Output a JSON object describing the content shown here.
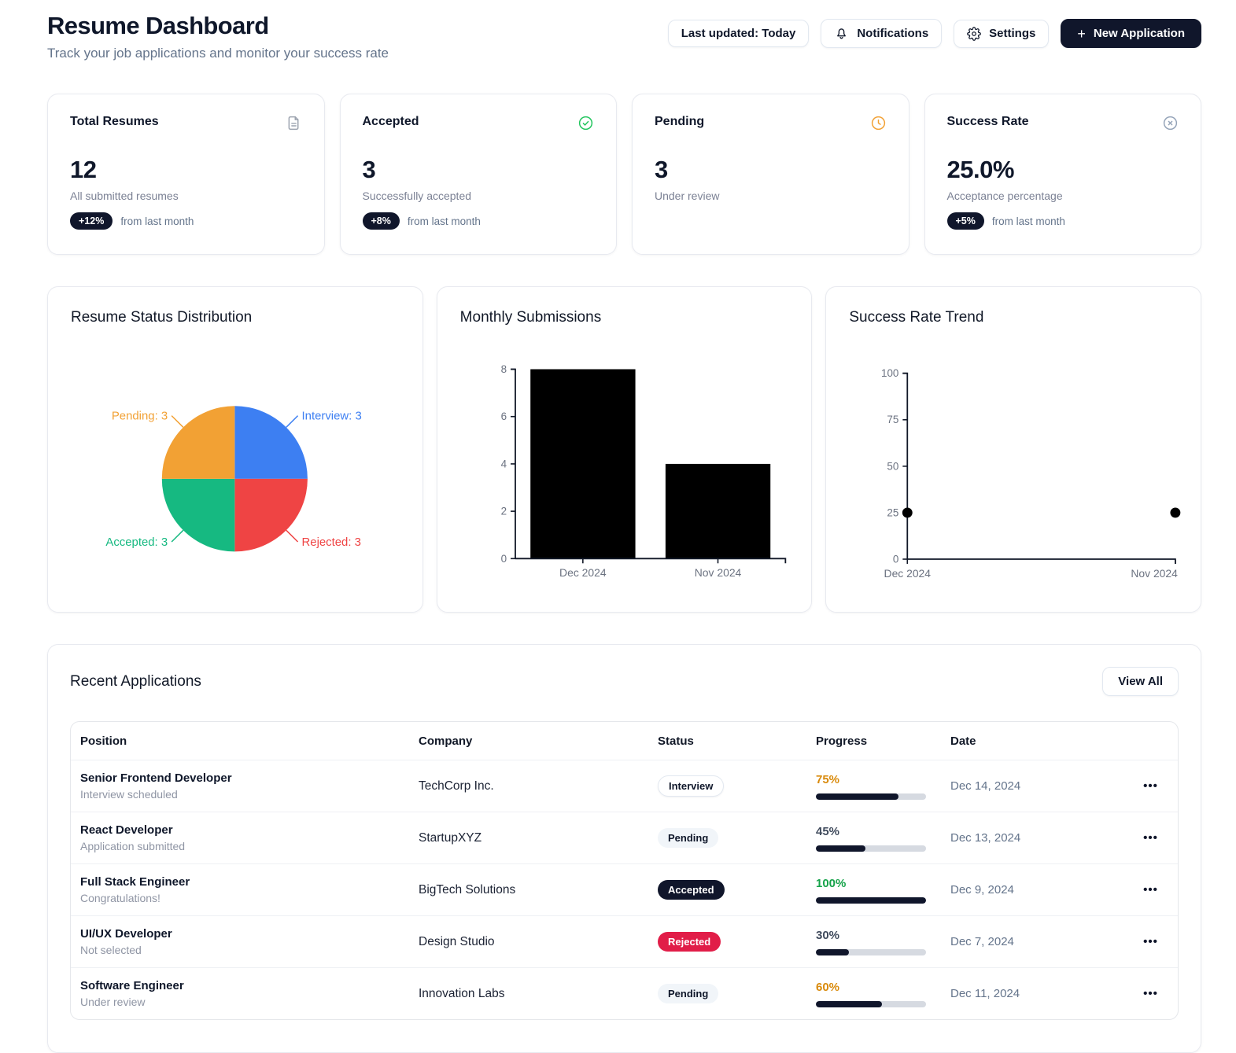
{
  "header": {
    "title": "Resume Dashboard",
    "subtitle": "Track your job applications and monitor your success rate",
    "last_updated_label": "Last updated: Today",
    "notifications_label": "Notifications",
    "settings_label": "Settings",
    "new_application_label": "New Application",
    "new_application_plus": "+"
  },
  "stat_cards": [
    {
      "title": "Total Resumes",
      "icon": "document-icon",
      "value": "12",
      "description": "All submitted resumes",
      "badge": "+12%",
      "badge_suffix": "from last month"
    },
    {
      "title": "Accepted",
      "icon": "check-circle-icon",
      "value": "3",
      "description": "Successfully accepted",
      "badge": "+8%",
      "badge_suffix": "from last month"
    },
    {
      "title": "Pending",
      "icon": "clock-icon",
      "value": "3",
      "description": "Under review",
      "badge": null,
      "badge_suffix": null
    },
    {
      "title": "Success Rate",
      "icon": "x-circle-icon",
      "value": "25.0%",
      "description": "Acceptance percentage",
      "badge": "+5%",
      "badge_suffix": "from last month"
    }
  ],
  "chart_data": [
    {
      "type": "pie",
      "title": "Resume Status Distribution",
      "slices": [
        {
          "label": "Interview",
          "value": 3,
          "color": "#3d7ff2"
        },
        {
          "label": "Rejected",
          "value": 3,
          "color": "#ef4444"
        },
        {
          "label": "Accepted",
          "value": 3,
          "color": "#16b981"
        },
        {
          "label": "Pending",
          "value": 3,
          "color": "#f2a134"
        }
      ],
      "legend_position": "callout-labels"
    },
    {
      "type": "bar",
      "title": "Monthly Submissions",
      "categories": [
        "Dec 2024",
        "Nov 2024"
      ],
      "values": [
        8,
        4
      ],
      "xlabel": "",
      "ylabel": "",
      "ylim": [
        0,
        8
      ],
      "yticks": [
        0,
        2,
        4,
        6,
        8
      ],
      "grid": false,
      "bar_color": "#000000"
    },
    {
      "type": "scatter",
      "title": "Success Rate Trend",
      "x": [
        "Dec 2024",
        "Nov 2024"
      ],
      "values": [
        25,
        25
      ],
      "xlabel": "",
      "ylabel": "",
      "ylim": [
        0,
        100
      ],
      "yticks": [
        0,
        25,
        50,
        75,
        100
      ],
      "grid": false,
      "point_color": "#000000"
    }
  ],
  "table": {
    "section_title": "Recent Applications",
    "view_all_label": "View All",
    "columns": [
      "Position",
      "Company",
      "Status",
      "Progress",
      "Date"
    ],
    "row_menu_glyph": "•••",
    "rows": [
      {
        "position": "Senior Frontend Developer",
        "note": "Interview scheduled",
        "company": "TechCorp Inc.",
        "status": "Interview",
        "status_style": "interview",
        "progress": 75,
        "progress_color": "#d98a0b",
        "date": "Dec 14, 2024"
      },
      {
        "position": "React Developer",
        "note": "Application submitted",
        "company": "StartupXYZ",
        "status": "Pending",
        "status_style": "pending",
        "progress": 45,
        "progress_color": "#3f4a5c",
        "date": "Dec 13, 2024"
      },
      {
        "position": "Full Stack Engineer",
        "note": "Congratulations!",
        "company": "BigTech Solutions",
        "status": "Accepted",
        "status_style": "accepted",
        "progress": 100,
        "progress_color": "#16a34a",
        "date": "Dec 9, 2024"
      },
      {
        "position": "UI/UX Developer",
        "note": "Not selected",
        "company": "Design Studio",
        "status": "Rejected",
        "status_style": "rejected",
        "progress": 30,
        "progress_color": "#3f4a5c",
        "date": "Dec 7, 2024"
      },
      {
        "position": "Software Engineer",
        "note": "Under review",
        "company": "Innovation Labs",
        "status": "Pending",
        "status_style": "pending",
        "progress": 60,
        "progress_color": "#d98a0b",
        "date": "Dec 11, 2024"
      }
    ]
  }
}
